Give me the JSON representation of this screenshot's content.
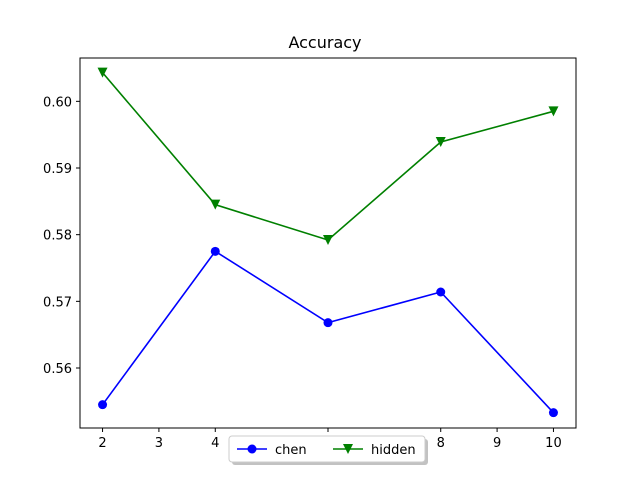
{
  "chart_data": {
    "type": "line",
    "title": "Accuracy",
    "xlabel": "",
    "ylabel": "",
    "x": [
      2,
      4,
      6,
      8,
      10
    ],
    "xlim": [
      1.6,
      10.4
    ],
    "ylim": [
      0.551,
      0.6065
    ],
    "xticks": [
      2,
      3,
      4,
      6,
      8,
      9,
      10
    ],
    "yticks": [
      0.56,
      0.57,
      0.58,
      0.59,
      0.6
    ],
    "ytick_labels": [
      "0.56",
      "0.57",
      "0.58",
      "0.59",
      "0.60"
    ],
    "grid": false,
    "legend_position": "bottom-center",
    "series": [
      {
        "name": "chen",
        "color": "#0000ff",
        "marker": "circle",
        "values": [
          0.5545,
          0.5775,
          0.5668,
          0.5714,
          0.5533
        ]
      },
      {
        "name": "hidden",
        "color": "#008000",
        "marker": "triangle-down",
        "values": [
          0.6043,
          0.5845,
          0.5792,
          0.5939,
          0.5985
        ]
      }
    ]
  }
}
